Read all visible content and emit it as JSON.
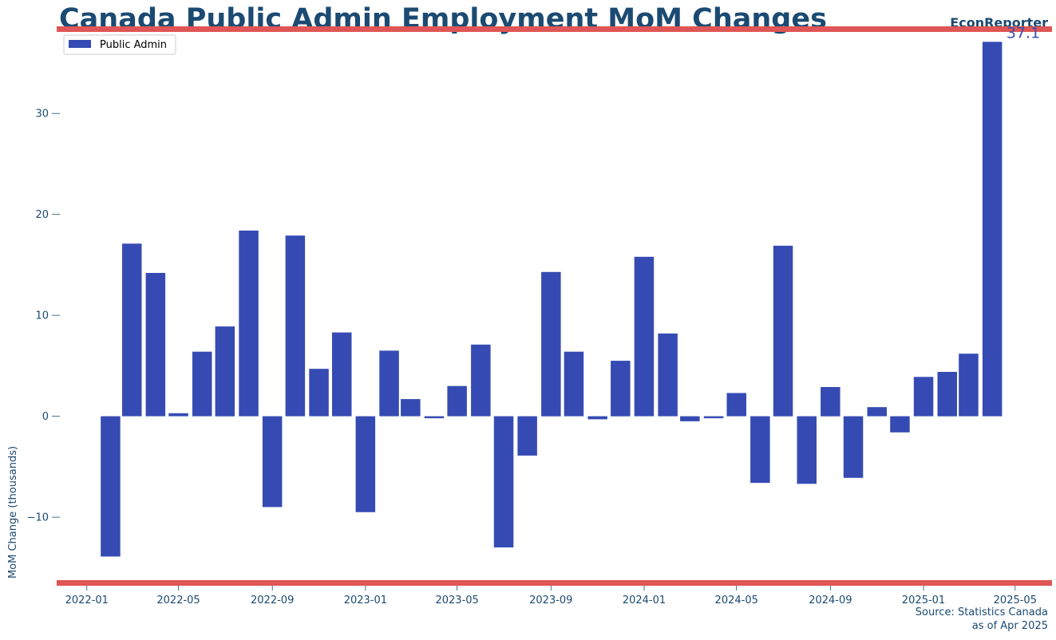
{
  "header": {
    "title": "Canada Public Admin Employment MoM Changes",
    "brand": "EconReporter"
  },
  "footer": {
    "source": "Source: Statistics Canada",
    "asof": "as of Apr 2025"
  },
  "colors": {
    "bar": "#354bb3",
    "accent_line": "#e05555",
    "text": "#1b4a72"
  },
  "chart_data": {
    "type": "bar",
    "title": "Canada Public Admin Employment MoM Changes",
    "ylabel": "MoM Change (thousands)",
    "xlabel": "",
    "legend": {
      "placement": "top-left",
      "entries": [
        "Public Admin"
      ]
    },
    "grid": false,
    "ylim": [
      -16,
      38
    ],
    "yticks": [
      -10,
      0,
      10,
      20,
      30
    ],
    "ytick_labels": [
      "−10",
      "0",
      "10",
      "20",
      "30"
    ],
    "xlim": [
      "2021-12-04",
      "2025-05-20"
    ],
    "xticks": [
      "2022-01-01",
      "2022-05-01",
      "2022-09-01",
      "2023-01-01",
      "2023-05-01",
      "2023-09-01",
      "2024-01-01",
      "2024-05-01",
      "2024-09-01",
      "2025-01-01",
      "2025-05-01"
    ],
    "xtick_labels": [
      "2022-01",
      "2022-05",
      "2022-09",
      "2023-01",
      "2023-05",
      "2023-09",
      "2024-01",
      "2024-05",
      "2024-09",
      "2025-01",
      "2025-05"
    ],
    "series": [
      {
        "name": "Public Admin",
        "x": [
          "2022-02",
          "2022-03",
          "2022-04",
          "2022-05",
          "2022-06",
          "2022-07",
          "2022-08",
          "2022-09",
          "2022-10",
          "2022-11",
          "2022-12",
          "2023-01",
          "2023-02",
          "2023-03",
          "2023-04",
          "2023-05",
          "2023-06",
          "2023-07",
          "2023-08",
          "2023-09",
          "2023-10",
          "2023-11",
          "2023-12",
          "2024-01",
          "2024-02",
          "2024-03",
          "2024-04",
          "2024-05",
          "2024-06",
          "2024-07",
          "2024-08",
          "2024-09",
          "2024-10",
          "2024-11",
          "2024-12",
          "2025-01",
          "2025-02",
          "2025-03",
          "2025-04"
        ],
        "values": [
          -13.9,
          17.1,
          14.2,
          0.3,
          6.4,
          8.9,
          18.4,
          -9.0,
          17.9,
          4.7,
          8.3,
          -9.5,
          6.5,
          1.7,
          -0.2,
          3.0,
          7.1,
          -13.0,
          -3.9,
          14.3,
          6.4,
          -0.3,
          5.5,
          15.8,
          8.2,
          -0.5,
          -0.2,
          2.3,
          -6.6,
          16.9,
          -6.7,
          2.9,
          -6.1,
          0.9,
          -1.6,
          3.9,
          4.4,
          6.2,
          37.1
        ]
      }
    ],
    "annotation": {
      "x": "2025-04",
      "text": "37.1"
    }
  }
}
